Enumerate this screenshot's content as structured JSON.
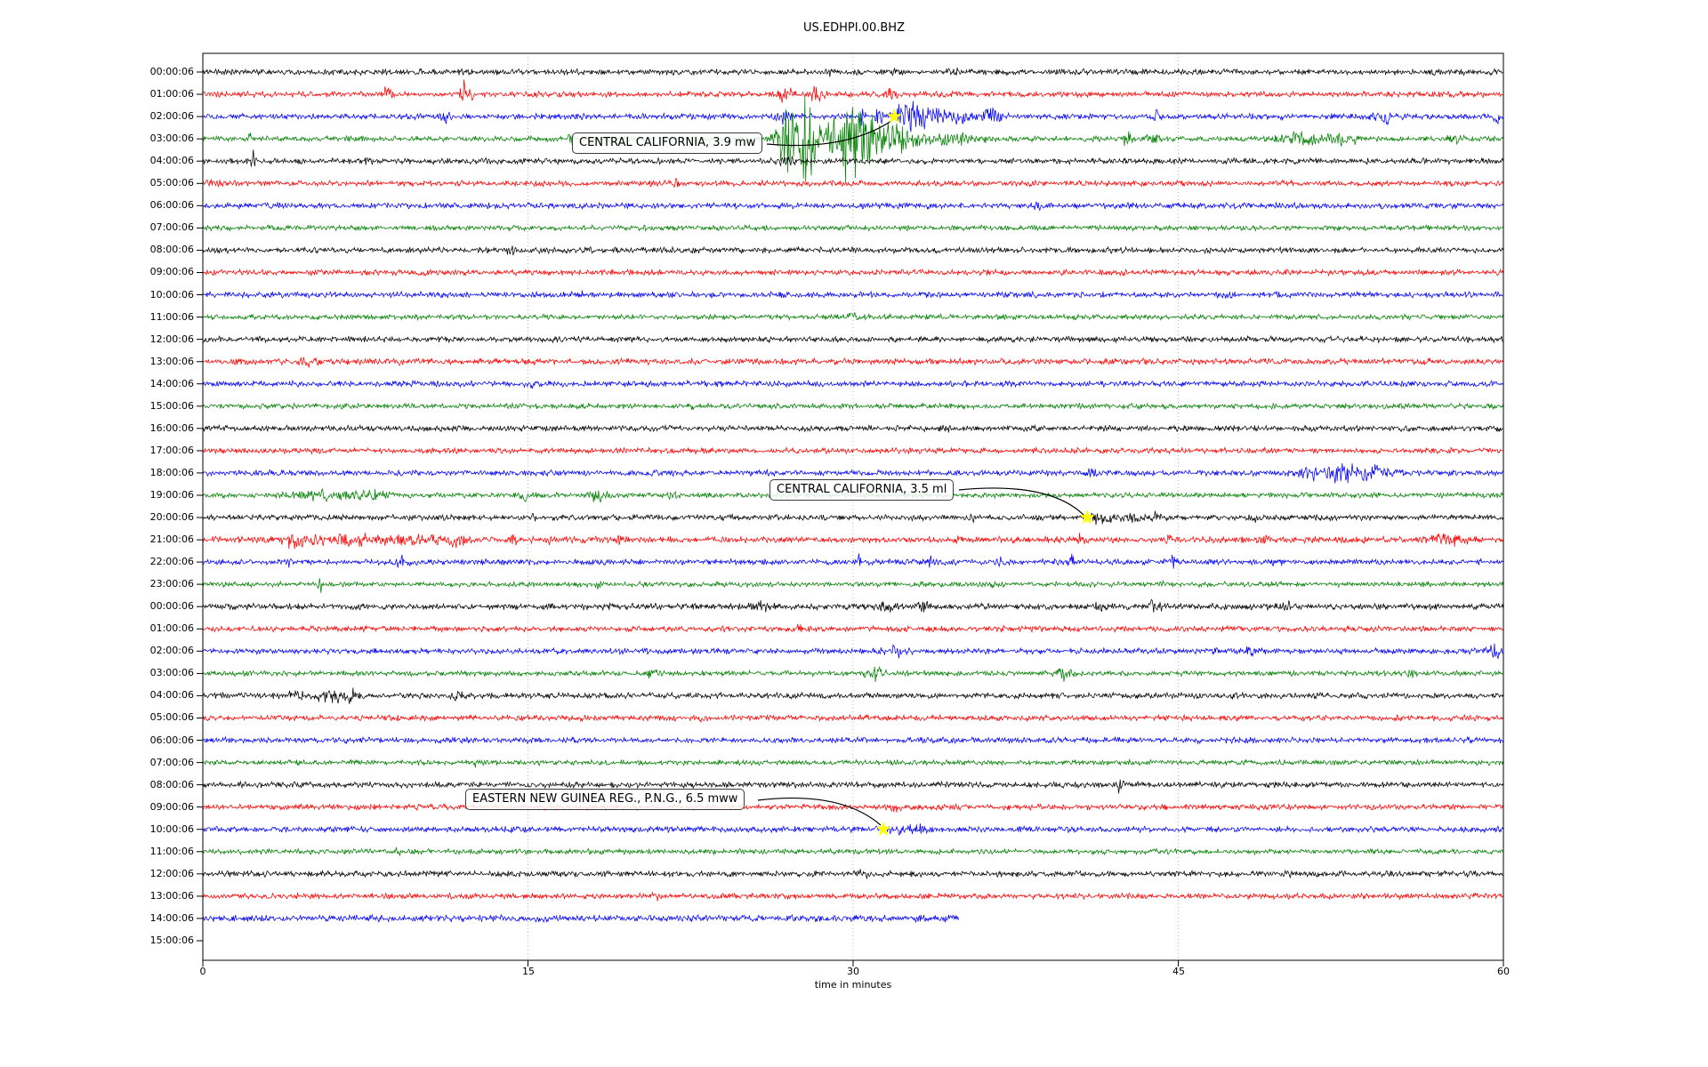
{
  "figure": {
    "title": "US.EDHPI.00.BHZ"
  },
  "chart_data": {
    "type": "line",
    "subtype": "seismogram-helicorder-dayplot",
    "title": "US.EDHPI.00.BHZ",
    "xlabel": "time in minutes",
    "xlim": [
      0,
      60
    ],
    "x_ticks": [
      0,
      15,
      30,
      45,
      60
    ],
    "grid": {
      "vertical_minutes": [
        15,
        30,
        45
      ],
      "style": "dotted",
      "color": "#b0b0b0"
    },
    "row_interval_minutes": 60,
    "color_cycle": [
      "#000000",
      "#ff0000",
      "#0000ff",
      "#008000"
    ],
    "event_marker": {
      "shape": "star",
      "color": "#ffff00"
    },
    "rows": [
      {
        "label": "00:00:06",
        "color": "#000000",
        "end_min": 60,
        "noise": 3.1,
        "bursts": [
          [
            28.9,
            0.2,
            4
          ],
          [
            31.8,
            0.2,
            5
          ],
          [
            34.6,
            0.2,
            4
          ]
        ]
      },
      {
        "label": "01:00:06",
        "color": "#ff0000",
        "end_min": 60,
        "noise": 3.0,
        "bursts": [
          [
            8.5,
            0.2,
            6
          ],
          [
            12.0,
            0.12,
            14
          ],
          [
            12.4,
            0.12,
            9
          ],
          [
            26.8,
            0.4,
            7
          ],
          [
            28.3,
            0.3,
            6
          ],
          [
            31.8,
            0.3,
            6
          ]
        ]
      },
      {
        "label": "02:00:06",
        "color": "#0000ff",
        "end_min": 60,
        "noise": 3.1,
        "bursts": [
          [
            11.2,
            0.3,
            6
          ],
          [
            26.8,
            0.5,
            6
          ],
          [
            30.4,
            0.15,
            9
          ],
          [
            31.2,
            0.15,
            8
          ],
          [
            32.6,
            0.7,
            20
          ],
          [
            34.3,
            1.2,
            7
          ],
          [
            36.3,
            0.5,
            7
          ],
          [
            44.0,
            0.3,
            4
          ],
          [
            54.5,
            0.4,
            7
          ],
          [
            59.7,
            0.2,
            6
          ]
        ]
      },
      {
        "label": "03:00:06",
        "color": "#008000",
        "end_min": 60,
        "noise": 2.8,
        "bursts": [
          [
            2.1,
            0.12,
            7
          ],
          [
            17.0,
            0.15,
            5
          ],
          [
            26.9,
            0.45,
            40
          ],
          [
            27.9,
            0.5,
            58
          ],
          [
            29.0,
            0.25,
            20
          ],
          [
            29.9,
            0.45,
            55
          ],
          [
            30.6,
            0.3,
            35
          ],
          [
            31.6,
            0.8,
            14
          ],
          [
            33.5,
            2.5,
            6
          ],
          [
            42.6,
            0.25,
            9
          ],
          [
            43.8,
            0.25,
            8
          ],
          [
            50.8,
            1.2,
            5
          ],
          [
            52.6,
            0.8,
            5
          ],
          [
            57.8,
            0.3,
            4
          ]
        ]
      },
      {
        "label": "04:00:06",
        "color": "#000000",
        "end_min": 60,
        "noise": 3.1,
        "bursts": [
          [
            2.3,
            0.12,
            11
          ],
          [
            7.6,
            0.12,
            9
          ],
          [
            27.0,
            0.3,
            5
          ]
        ]
      },
      {
        "label": "05:00:06",
        "color": "#ff0000",
        "end_min": 60,
        "noise": 3.0,
        "bursts": [
          [
            0.6,
            0.3,
            4
          ],
          [
            21.8,
            0.15,
            4
          ]
        ]
      },
      {
        "label": "06:00:06",
        "color": "#0000ff",
        "end_min": 60,
        "noise": 3.1,
        "bursts": [
          [
            38.5,
            0.2,
            4
          ]
        ]
      },
      {
        "label": "07:00:06",
        "color": "#008000",
        "end_min": 60,
        "noise": 2.8,
        "bursts": []
      },
      {
        "label": "08:00:06",
        "color": "#000000",
        "end_min": 60,
        "noise": 3.1,
        "bursts": [
          [
            14.2,
            0.2,
            3
          ]
        ]
      },
      {
        "label": "09:00:06",
        "color": "#ff0000",
        "end_min": 60,
        "noise": 3.0,
        "bursts": []
      },
      {
        "label": "10:00:06",
        "color": "#0000ff",
        "end_min": 60,
        "noise": 3.1,
        "bursts": [
          [
            17.5,
            0.2,
            4
          ],
          [
            47.2,
            0.2,
            4
          ]
        ]
      },
      {
        "label": "11:00:06",
        "color": "#008000",
        "end_min": 60,
        "noise": 2.8,
        "bursts": [
          [
            29.9,
            0.2,
            4
          ]
        ]
      },
      {
        "label": "12:00:06",
        "color": "#000000",
        "end_min": 60,
        "noise": 3.1,
        "bursts": []
      },
      {
        "label": "13:00:06",
        "color": "#ff0000",
        "end_min": 60,
        "noise": 3.3,
        "bursts": [
          [
            5.0,
            0.4,
            3
          ],
          [
            9.0,
            0.3,
            3
          ]
        ]
      },
      {
        "label": "14:00:06",
        "color": "#0000ff",
        "end_min": 60,
        "noise": 3.1,
        "bursts": [
          [
            15.1,
            0.2,
            4
          ]
        ]
      },
      {
        "label": "15:00:06",
        "color": "#008000",
        "end_min": 60,
        "noise": 2.8,
        "bursts": [
          [
            22.5,
            0.2,
            3
          ]
        ]
      },
      {
        "label": "16:00:06",
        "color": "#000000",
        "end_min": 60,
        "noise": 3.1,
        "bursts": [
          [
            34.2,
            0.2,
            4
          ]
        ]
      },
      {
        "label": "17:00:06",
        "color": "#ff0000",
        "end_min": 60,
        "noise": 3.0,
        "bursts": []
      },
      {
        "label": "18:00:06",
        "color": "#0000ff",
        "end_min": 60,
        "noise": 3.1,
        "bursts": [
          [
            41.0,
            0.2,
            5
          ],
          [
            50.8,
            0.5,
            6
          ],
          [
            52.5,
            1.2,
            8
          ],
          [
            54.3,
            0.6,
            6
          ]
        ]
      },
      {
        "label": "19:00:06",
        "color": "#008000",
        "end_min": 60,
        "noise": 2.8,
        "bursts": [
          [
            5.8,
            1.6,
            4
          ],
          [
            7.9,
            0.5,
            5
          ],
          [
            14.8,
            0.3,
            4
          ],
          [
            18.2,
            0.5,
            5
          ],
          [
            21.7,
            0.15,
            5
          ]
        ]
      },
      {
        "label": "20:00:06",
        "color": "#000000",
        "end_min": 60,
        "noise": 3.1,
        "bursts": [
          [
            15.2,
            0.15,
            4
          ],
          [
            35.5,
            0.15,
            4
          ],
          [
            41.4,
            0.6,
            7
          ],
          [
            42.9,
            0.3,
            5
          ],
          [
            43.9,
            0.2,
            5
          ],
          [
            48.5,
            0.2,
            4
          ]
        ]
      },
      {
        "label": "21:00:06",
        "color": "#ff0000",
        "end_min": 60,
        "noise": 3.4,
        "bursts": [
          [
            4.3,
            0.5,
            8
          ],
          [
            6.6,
            1.6,
            5
          ],
          [
            9.6,
            1.0,
            5
          ],
          [
            11.6,
            0.5,
            5
          ],
          [
            14.3,
            0.12,
            14
          ],
          [
            16.0,
            0.15,
            5
          ],
          [
            19.2,
            0.15,
            5
          ],
          [
            34.8,
            0.2,
            5
          ],
          [
            40.5,
            0.2,
            5
          ],
          [
            44.5,
            0.2,
            4
          ],
          [
            49.0,
            0.2,
            4
          ],
          [
            57.5,
            1.0,
            4
          ]
        ]
      },
      {
        "label": "22:00:06",
        "color": "#0000ff",
        "end_min": 60,
        "noise": 3.1,
        "bursts": [
          [
            4.0,
            0.12,
            8
          ],
          [
            9.1,
            0.3,
            6
          ],
          [
            20.3,
            0.2,
            4
          ],
          [
            30.2,
            0.15,
            7
          ],
          [
            33.6,
            0.15,
            7
          ],
          [
            36.8,
            0.2,
            4
          ],
          [
            40.1,
            0.12,
            9
          ],
          [
            44.8,
            0.2,
            5
          ],
          [
            49.5,
            0.2,
            4
          ]
        ]
      },
      {
        "label": "23:00:06",
        "color": "#008000",
        "end_min": 60,
        "noise": 2.8,
        "bursts": [
          [
            5.4,
            0.15,
            8
          ],
          [
            18.3,
            0.2,
            3
          ],
          [
            36.5,
            0.3,
            3
          ],
          [
            44.2,
            0.2,
            4
          ]
        ]
      },
      {
        "label": "00:00:06",
        "color": "#000000",
        "end_min": 60,
        "noise": 3.3,
        "bursts": [
          [
            25.7,
            0.4,
            5
          ],
          [
            31.6,
            0.4,
            5
          ],
          [
            33.2,
            0.3,
            5
          ],
          [
            41.5,
            0.3,
            4
          ],
          [
            43.9,
            0.3,
            5
          ],
          [
            50.0,
            0.2,
            4
          ]
        ]
      },
      {
        "label": "01:00:06",
        "color": "#ff0000",
        "end_min": 60,
        "noise": 3.0,
        "bursts": [
          [
            27.5,
            0.2,
            3
          ],
          [
            36.9,
            0.12,
            4
          ]
        ]
      },
      {
        "label": "02:00:06",
        "color": "#0000ff",
        "end_min": 60,
        "noise": 3.1,
        "bursts": [
          [
            32.0,
            0.5,
            6
          ],
          [
            48.4,
            0.3,
            5
          ],
          [
            59.6,
            0.3,
            7
          ]
        ]
      },
      {
        "label": "03:00:06",
        "color": "#008000",
        "end_min": 60,
        "noise": 2.8,
        "bursts": [
          [
            20.8,
            0.3,
            6
          ],
          [
            31.0,
            0.5,
            6
          ],
          [
            39.7,
            0.5,
            6
          ],
          [
            55.8,
            0.2,
            3
          ]
        ]
      },
      {
        "label": "04:00:06",
        "color": "#000000",
        "end_min": 60,
        "noise": 3.1,
        "bursts": [
          [
            4.6,
            0.6,
            5
          ],
          [
            5.9,
            0.5,
            8
          ],
          [
            6.9,
            0.4,
            6
          ],
          [
            11.8,
            0.2,
            4
          ]
        ]
      },
      {
        "label": "05:00:06",
        "color": "#ff0000",
        "end_min": 60,
        "noise": 3.0,
        "bursts": [
          [
            23.0,
            0.2,
            3
          ]
        ]
      },
      {
        "label": "06:00:06",
        "color": "#0000ff",
        "end_min": 60,
        "noise": 3.1,
        "bursts": []
      },
      {
        "label": "07:00:06",
        "color": "#008000",
        "end_min": 60,
        "noise": 2.8,
        "bursts": [
          [
            12.5,
            0.2,
            3
          ]
        ]
      },
      {
        "label": "08:00:06",
        "color": "#000000",
        "end_min": 60,
        "noise": 3.1,
        "bursts": [
          [
            42.3,
            0.12,
            7
          ]
        ]
      },
      {
        "label": "09:00:06",
        "color": "#ff0000",
        "end_min": 60,
        "noise": 3.0,
        "bursts": [
          [
            32.0,
            0.2,
            3
          ]
        ]
      },
      {
        "label": "10:00:06",
        "color": "#0000ff",
        "end_min": 60,
        "noise": 3.1,
        "bursts": [
          [
            32.1,
            0.5,
            5
          ],
          [
            33.1,
            0.3,
            4
          ]
        ]
      },
      {
        "label": "11:00:06",
        "color": "#008000",
        "end_min": 60,
        "noise": 2.8,
        "bursts": [
          [
            9.0,
            0.2,
            3
          ]
        ]
      },
      {
        "label": "12:00:06",
        "color": "#000000",
        "end_min": 60,
        "noise": 3.1,
        "bursts": [
          [
            30.5,
            0.3,
            3
          ],
          [
            50.0,
            0.2,
            3
          ]
        ]
      },
      {
        "label": "13:00:06",
        "color": "#ff0000",
        "end_min": 60,
        "noise": 3.0,
        "bursts": [
          [
            21.0,
            0.2,
            3
          ]
        ]
      },
      {
        "label": "14:00:06",
        "color": "#0000ff",
        "end_min": 34.9,
        "noise": 3.6,
        "bursts": []
      },
      {
        "label": "15:00:06",
        "color": null,
        "end_min": 0,
        "noise": 0,
        "bursts": []
      }
    ],
    "events": [
      {
        "label": "CENTRAL CALIFORNIA, 3.9 mw",
        "row_index": 2,
        "minute": 31.9
      },
      {
        "label": "CENTRAL CALIFORNIA, 3.5 ml",
        "row_index": 20,
        "minute": 40.8
      },
      {
        "label": "EASTERN NEW GUINEA REG., P.N.G., 6.5 mww",
        "row_index": 34,
        "minute": 31.4
      }
    ]
  }
}
